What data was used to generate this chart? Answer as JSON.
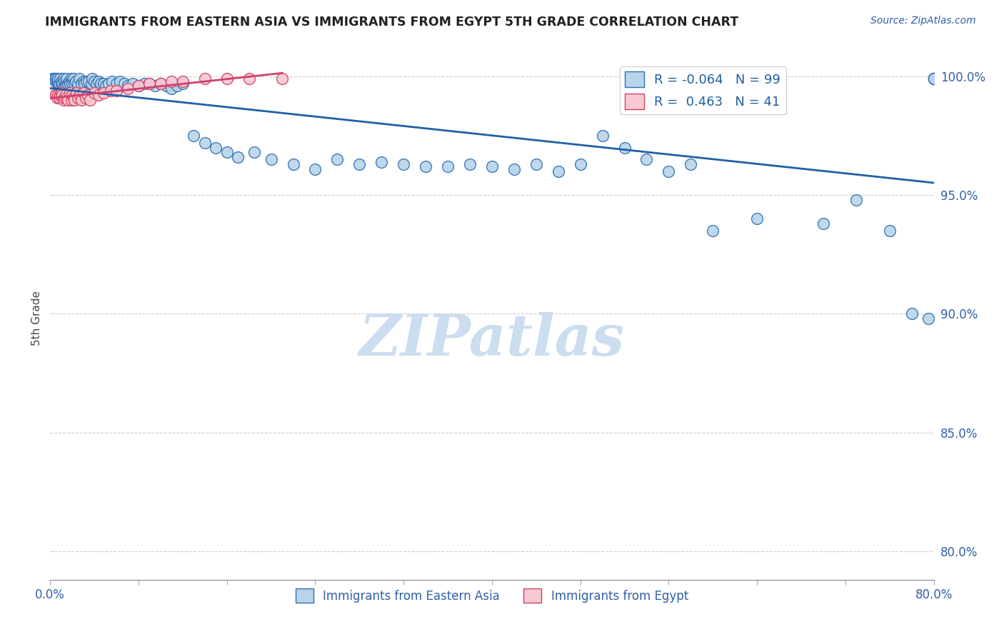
{
  "title": "IMMIGRANTS FROM EASTERN ASIA VS IMMIGRANTS FROM EGYPT 5TH GRADE CORRELATION CHART",
  "source": "Source: ZipAtlas.com",
  "ylabel": "5th Grade",
  "xlim": [
    0.0,
    0.8
  ],
  "ylim": [
    0.788,
    1.008
  ],
  "ytick_values": [
    0.8,
    0.85,
    0.9,
    0.95,
    1.0
  ],
  "R_blue": -0.064,
  "N_blue": 99,
  "R_pink": 0.463,
  "N_pink": 41,
  "blue_fill": "#b8d4ea",
  "blue_edge": "#3070b0",
  "pink_fill": "#f8c8d4",
  "pink_edge": "#d04060",
  "blue_line_color": "#2060a8",
  "pink_line_color": "#d04070",
  "watermark": "ZIPatlas",
  "watermark_color": "#ccddf0",
  "blue_x": [
    0.002,
    0.003,
    0.004,
    0.005,
    0.005,
    0.006,
    0.007,
    0.007,
    0.008,
    0.009,
    0.01,
    0.01,
    0.011,
    0.012,
    0.013,
    0.013,
    0.014,
    0.015,
    0.015,
    0.016,
    0.017,
    0.018,
    0.019,
    0.02,
    0.02,
    0.021,
    0.022,
    0.023,
    0.025,
    0.026,
    0.028,
    0.03,
    0.031,
    0.033,
    0.035,
    0.037,
    0.038,
    0.04,
    0.042,
    0.044,
    0.046,
    0.048,
    0.05,
    0.053,
    0.056,
    0.06,
    0.063,
    0.067,
    0.07,
    0.075,
    0.08,
    0.085,
    0.09,
    0.095,
    0.1,
    0.105,
    0.11,
    0.115,
    0.12,
    0.13,
    0.14,
    0.15,
    0.16,
    0.17,
    0.185,
    0.2,
    0.22,
    0.24,
    0.26,
    0.28,
    0.3,
    0.32,
    0.34,
    0.36,
    0.38,
    0.4,
    0.42,
    0.44,
    0.46,
    0.48,
    0.5,
    0.52,
    0.54,
    0.56,
    0.58,
    0.6,
    0.64,
    0.7,
    0.73,
    0.76,
    0.78,
    0.795,
    0.8,
    0.8,
    0.8,
    0.8,
    0.8,
    0.8,
    0.8
  ],
  "blue_y": [
    0.999,
    0.999,
    0.999,
    0.999,
    0.998,
    0.998,
    0.998,
    0.999,
    0.997,
    0.999,
    0.997,
    0.998,
    0.997,
    0.999,
    0.996,
    0.998,
    0.997,
    0.996,
    0.999,
    0.997,
    0.998,
    0.997,
    0.999,
    0.998,
    0.997,
    0.999,
    0.997,
    0.998,
    0.997,
    0.999,
    0.997,
    0.998,
    0.997,
    0.998,
    0.998,
    0.997,
    0.999,
    0.998,
    0.997,
    0.998,
    0.997,
    0.997,
    0.996,
    0.997,
    0.998,
    0.997,
    0.998,
    0.997,
    0.996,
    0.997,
    0.996,
    0.997,
    0.997,
    0.996,
    0.997,
    0.996,
    0.995,
    0.996,
    0.997,
    0.975,
    0.972,
    0.97,
    0.968,
    0.966,
    0.968,
    0.965,
    0.963,
    0.961,
    0.965,
    0.963,
    0.964,
    0.963,
    0.962,
    0.962,
    0.963,
    0.962,
    0.961,
    0.963,
    0.96,
    0.963,
    0.975,
    0.97,
    0.965,
    0.96,
    0.963,
    0.935,
    0.94,
    0.938,
    0.948,
    0.935,
    0.9,
    0.898,
    0.999,
    0.999,
    0.999,
    0.999,
    0.999,
    0.999,
    0.999
  ],
  "pink_x": [
    0.003,
    0.005,
    0.006,
    0.007,
    0.008,
    0.009,
    0.01,
    0.011,
    0.012,
    0.013,
    0.014,
    0.015,
    0.016,
    0.018,
    0.019,
    0.02,
    0.021,
    0.022,
    0.024,
    0.025,
    0.027,
    0.028,
    0.03,
    0.032,
    0.034,
    0.036,
    0.04,
    0.044,
    0.048,
    0.055,
    0.06,
    0.07,
    0.08,
    0.09,
    0.1,
    0.11,
    0.12,
    0.14,
    0.16,
    0.18,
    0.21
  ],
  "pink_y": [
    0.993,
    0.992,
    0.991,
    0.992,
    0.991,
    0.992,
    0.993,
    0.992,
    0.99,
    0.991,
    0.992,
    0.991,
    0.99,
    0.993,
    0.99,
    0.992,
    0.991,
    0.99,
    0.993,
    0.991,
    0.992,
    0.99,
    0.993,
    0.991,
    0.992,
    0.99,
    0.993,
    0.992,
    0.993,
    0.994,
    0.994,
    0.995,
    0.996,
    0.997,
    0.997,
    0.998,
    0.998,
    0.999,
    0.999,
    0.999,
    0.999
  ]
}
